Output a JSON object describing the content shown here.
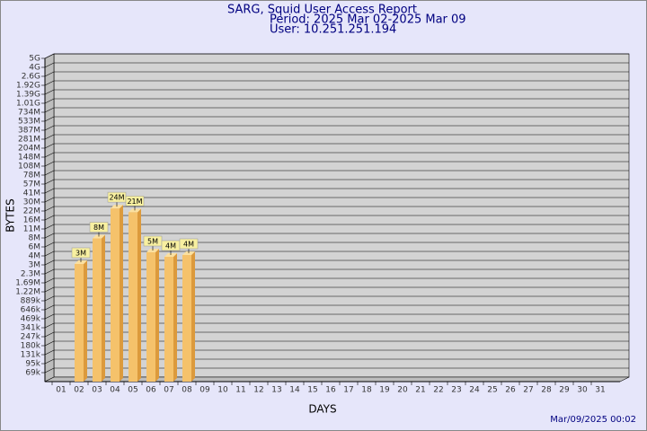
{
  "chart_data": {
    "type": "bar",
    "title": "SARG, Squid User Access Report",
    "subtitle": "Period: 2025 Mar 02-2025 Mar 09",
    "user": "User: 10.251.251.194",
    "x_label": "DAYS",
    "y_label": "BYTES",
    "footer": "Mar/09/2025 00:02",
    "color": "#f5c26b",
    "categories": [
      "01",
      "02",
      "03",
      "04",
      "05",
      "06",
      "07",
      "08",
      "09",
      "10",
      "11",
      "12",
      "13",
      "14",
      "15",
      "16",
      "17",
      "18",
      "19",
      "20",
      "21",
      "22",
      "23",
      "24",
      "25",
      "26",
      "27",
      "28",
      "29",
      "30",
      "31"
    ],
    "values": [
      null,
      3100000,
      7900000,
      24300000,
      21200000,
      4800000,
      3900000,
      4200000,
      null,
      null,
      null,
      null,
      null,
      null,
      null,
      null,
      null,
      null,
      null,
      null,
      null,
      null,
      null,
      null,
      null,
      null,
      null,
      null,
      null,
      null,
      null
    ],
    "value_labels": [
      null,
      "3M",
      "8M",
      "24M",
      "21M",
      "5M",
      "4M",
      "4M",
      null,
      null,
      null,
      null,
      null,
      null,
      null,
      null,
      null,
      null,
      null,
      null,
      null,
      null,
      null,
      null,
      null,
      null,
      null,
      null,
      null,
      null,
      null
    ],
    "ylim": [
      0,
      5000000000
    ],
    "yticks": [
      {
        "value": 69000,
        "label": "69k"
      },
      {
        "value": 95000,
        "label": "95k"
      },
      {
        "value": 131000,
        "label": "131k"
      },
      {
        "value": 180000,
        "label": "180k"
      },
      {
        "value": 247000,
        "label": "247k"
      },
      {
        "value": 341000,
        "label": "341k"
      },
      {
        "value": 469000,
        "label": "469k"
      },
      {
        "value": 646000,
        "label": "646k"
      },
      {
        "value": 889000,
        "label": "889k"
      },
      {
        "value": 1220000,
        "label": "1.22M"
      },
      {
        "value": 1690000,
        "label": "1.69M"
      },
      {
        "value": 2300000,
        "label": "2.3M"
      },
      {
        "value": 3000000,
        "label": "3M"
      },
      {
        "value": 4000000,
        "label": "4M"
      },
      {
        "value": 6000000,
        "label": "6M"
      },
      {
        "value": 8000000,
        "label": "8M"
      },
      {
        "value": 11000000,
        "label": "11M"
      },
      {
        "value": 16000000,
        "label": "16M"
      },
      {
        "value": 22000000,
        "label": "22M"
      },
      {
        "value": 30000000,
        "label": "30M"
      },
      {
        "value": 41000000,
        "label": "41M"
      },
      {
        "value": 57000000,
        "label": "57M"
      },
      {
        "value": 78000000,
        "label": "78M"
      },
      {
        "value": 108000000,
        "label": "108M"
      },
      {
        "value": 148000000,
        "label": "148M"
      },
      {
        "value": 204000000,
        "label": "204M"
      },
      {
        "value": 281000000,
        "label": "281M"
      },
      {
        "value": 387000000,
        "label": "387M"
      },
      {
        "value": 533000000,
        "label": "533M"
      },
      {
        "value": 734000000,
        "label": "734M"
      },
      {
        "value": 1010000000,
        "label": "1.01G"
      },
      {
        "value": 1390000000,
        "label": "1.39G"
      },
      {
        "value": 1920000000,
        "label": "1.92G"
      },
      {
        "value": 2600000000,
        "label": "2.6G"
      },
      {
        "value": 4000000000,
        "label": "4G"
      },
      {
        "value": 5000000000,
        "label": "5G"
      }
    ],
    "grid": true
  }
}
